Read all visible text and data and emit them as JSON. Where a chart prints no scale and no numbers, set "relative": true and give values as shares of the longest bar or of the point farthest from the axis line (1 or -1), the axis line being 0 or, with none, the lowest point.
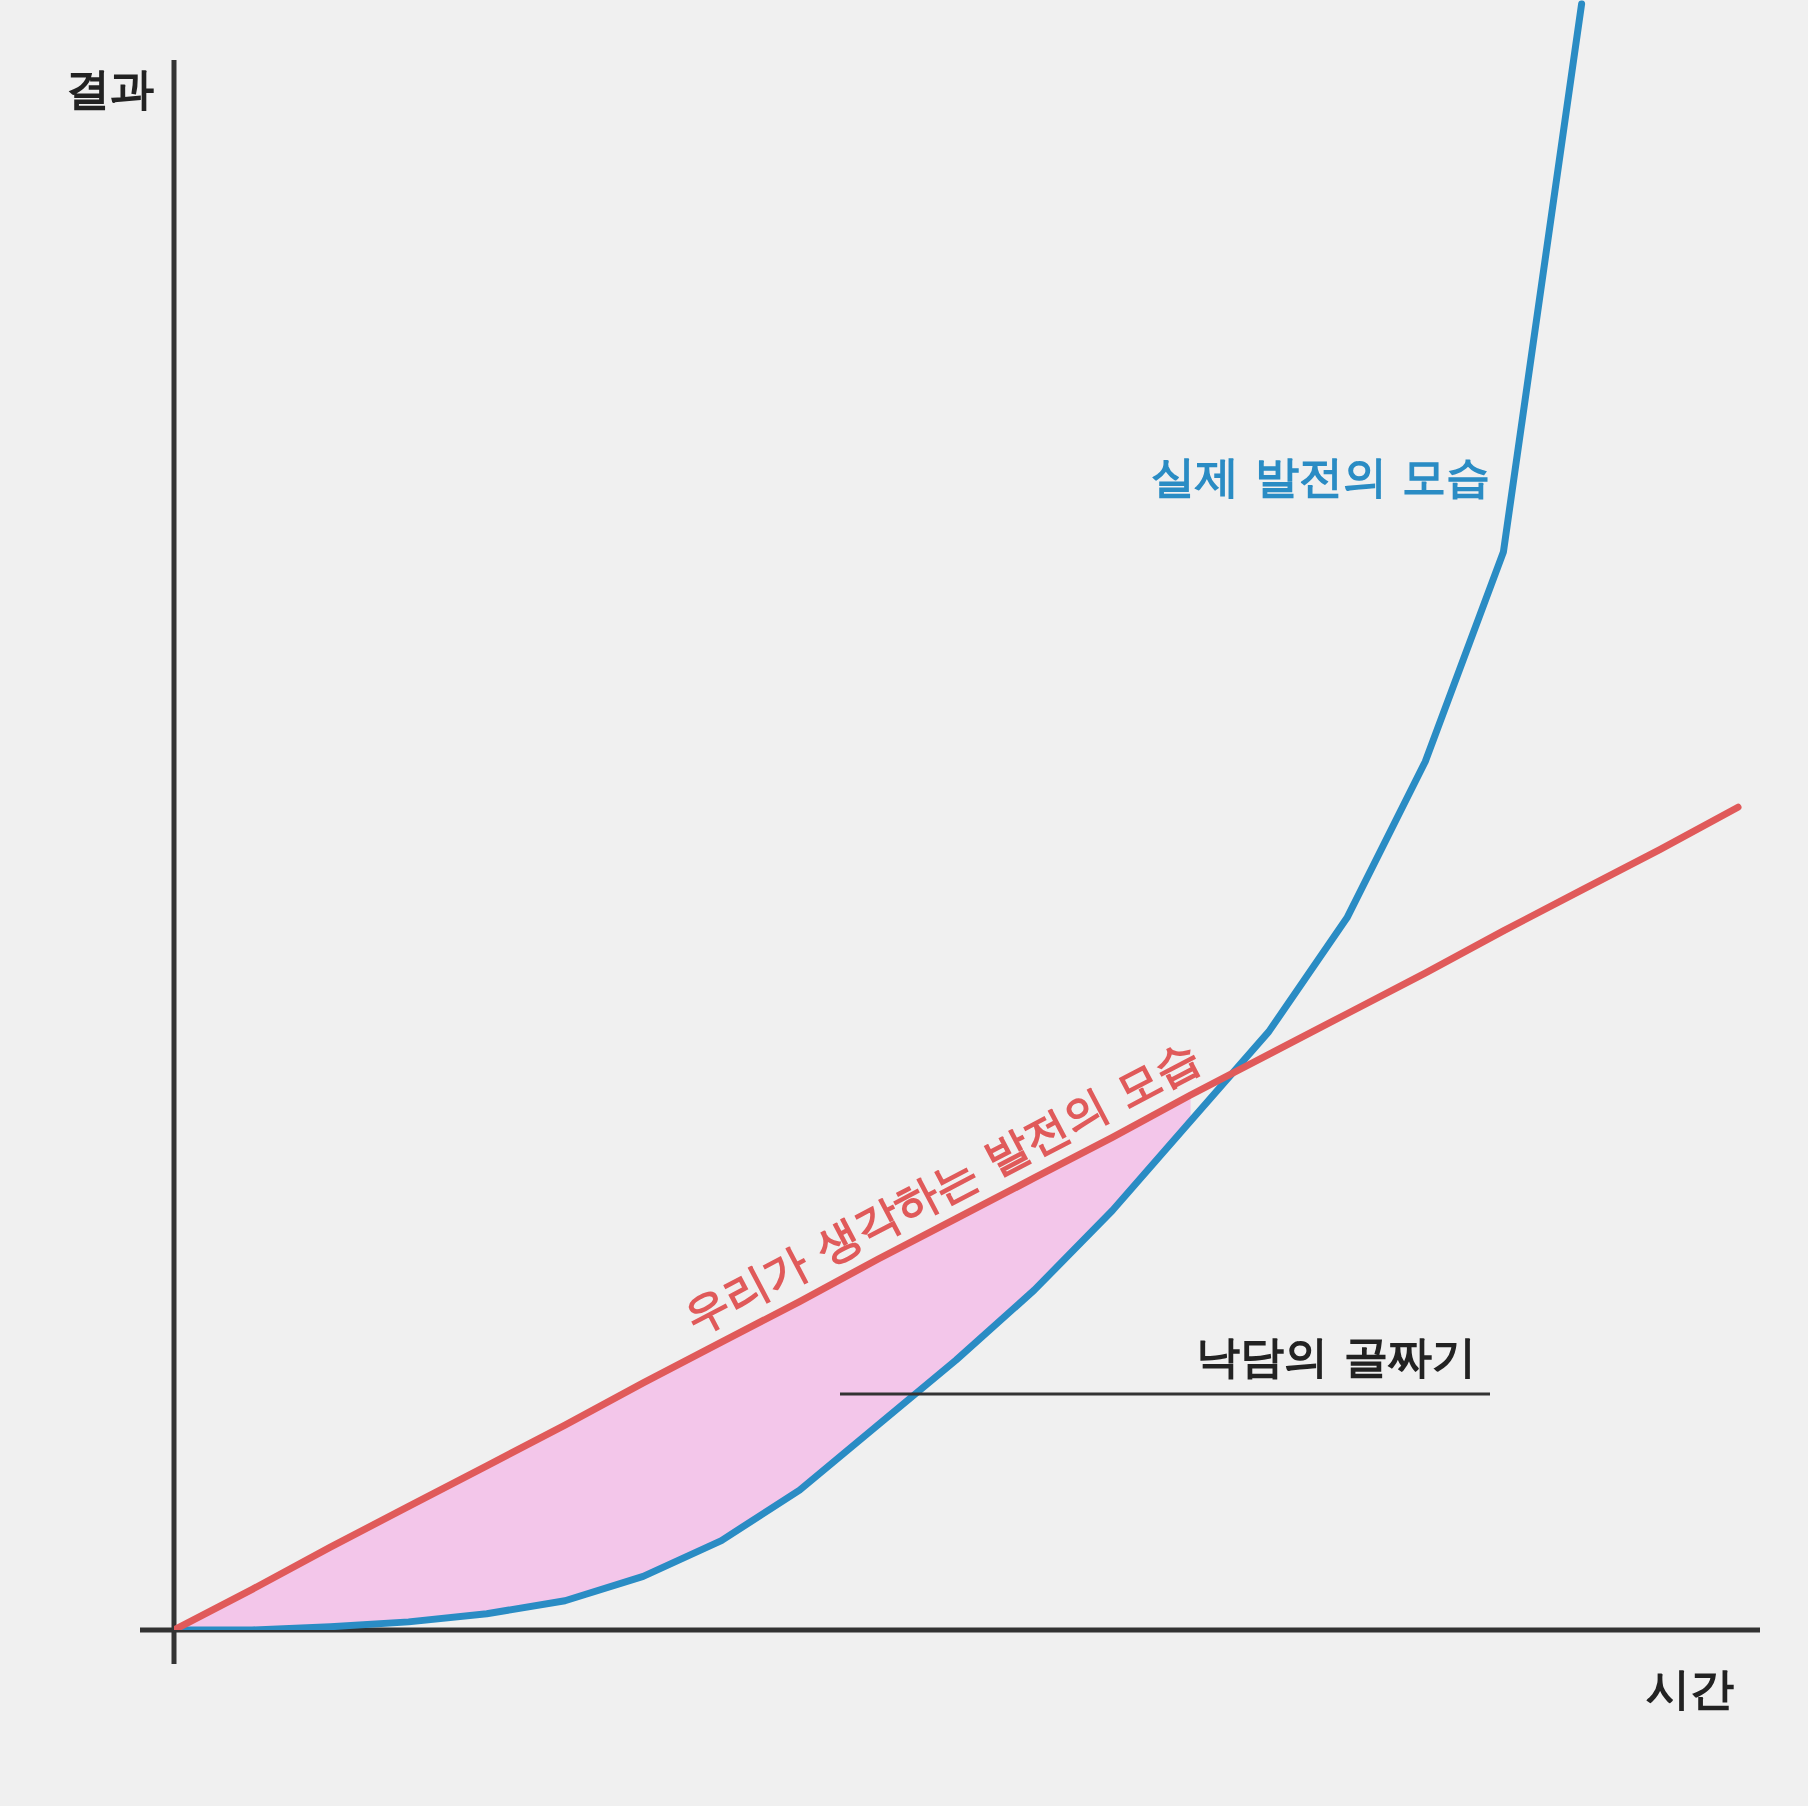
{
  "chart_data": {
    "type": "line",
    "relative": true,
    "xlabel": "시간",
    "ylabel": "결과",
    "categories": [
      null,
      null,
      null,
      null,
      null,
      null,
      null,
      null,
      null,
      null,
      null,
      null,
      null,
      null,
      null,
      null,
      null,
      null,
      null,
      null,
      null
    ],
    "series": [
      {
        "name": "실제 발전의 모습",
        "color": "#2a8cc4",
        "values": [
          0,
          0,
          0.002,
          0.005,
          0.01,
          0.018,
          0.033,
          0.055,
          0.086,
          0.126,
          0.166,
          0.209,
          0.258,
          0.313,
          0.368,
          0.438,
          0.534,
          0.663,
          1,
          null,
          null
        ]
      },
      {
        "name": "우리가 생각하는 발전의 모습",
        "color": "#e05a5a",
        "values": [
          0,
          0.025,
          0.051,
          0.076,
          0.101,
          0.126,
          0.152,
          0.177,
          0.202,
          0.228,
          0.253,
          0.278,
          0.303,
          0.329,
          0.354,
          0.379,
          0.404,
          0.43,
          0.455,
          0.48,
          0.506
        ],
        "lower": [
          0,
          0,
          0.002,
          0.005,
          0.01,
          0.018,
          0.033,
          0.055,
          0.086,
          0.126,
          0.166,
          0.209,
          0.258,
          0.313,
          null,
          null,
          null,
          null,
          null,
          null,
          null
        ],
        "upper": [
          0,
          0.025,
          0.051,
          0.076,
          0.101,
          0.126,
          0.152,
          0.177,
          0.202,
          0.228,
          0.253,
          0.278,
          0.303,
          0.329,
          null,
          null,
          null,
          null,
          null,
          null,
          null
        ]
      }
    ],
    "annotations": [
      "낙담의 골짜기"
    ]
  }
}
